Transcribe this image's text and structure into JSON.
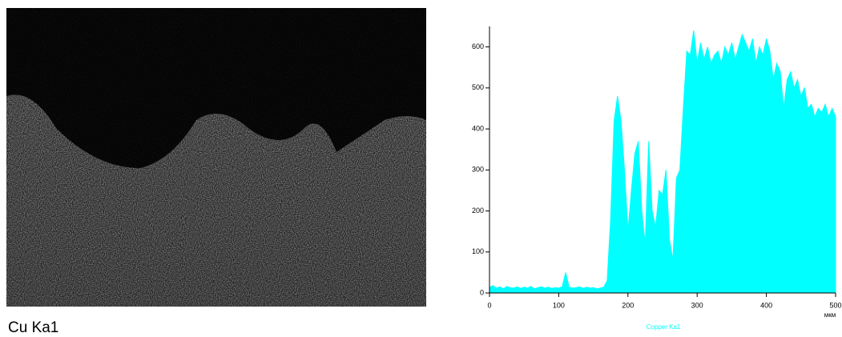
{
  "map": {
    "label": "Cu Ka1"
  },
  "chart_data": {
    "type": "area",
    "title": "Copper Ka1",
    "xlabel": "мкм",
    "color": "#00ffff",
    "x": [
      0,
      5,
      10,
      15,
      20,
      25,
      30,
      35,
      40,
      45,
      50,
      55,
      60,
      65,
      70,
      75,
      80,
      85,
      90,
      95,
      100,
      105,
      110,
      115,
      120,
      125,
      130,
      135,
      140,
      145,
      150,
      155,
      160,
      165,
      170,
      175,
      180,
      185,
      190,
      195,
      200,
      205,
      210,
      215,
      220,
      225,
      230,
      235,
      240,
      245,
      250,
      255,
      260,
      265,
      270,
      275,
      280,
      285,
      290,
      295,
      300,
      305,
      310,
      315,
      320,
      325,
      330,
      335,
      340,
      345,
      350,
      355,
      360,
      365,
      370,
      375,
      380,
      385,
      390,
      395,
      400,
      405,
      410,
      415,
      420,
      425,
      430,
      435,
      440,
      445,
      450,
      455,
      460,
      465,
      470,
      475,
      480,
      485,
      490,
      495,
      500
    ],
    "values": [
      14,
      18,
      12,
      15,
      10,
      16,
      13,
      12,
      15,
      11,
      14,
      12,
      16,
      10,
      13,
      15,
      12,
      14,
      11,
      13,
      12,
      15,
      50,
      14,
      12,
      13,
      15,
      11,
      14,
      12,
      13,
      10,
      12,
      14,
      30,
      180,
      420,
      480,
      420,
      300,
      150,
      250,
      340,
      370,
      200,
      120,
      370,
      200,
      160,
      250,
      240,
      300,
      130,
      80,
      280,
      300,
      450,
      590,
      580,
      640,
      560,
      610,
      570,
      600,
      560,
      580,
      590,
      560,
      600,
      580,
      610,
      570,
      600,
      630,
      610,
      590,
      620,
      560,
      600,
      580,
      620,
      590,
      520,
      560,
      540,
      450,
      520,
      540,
      500,
      520,
      480,
      500,
      450,
      460,
      430,
      450,
      440,
      460,
      430,
      450,
      430
    ],
    "xlim": [
      0,
      500
    ],
    "ylim": [
      0,
      650
    ],
    "xticks": [
      0,
      100,
      200,
      300,
      400,
      500
    ],
    "yticks": [
      0,
      100,
      200,
      300,
      400,
      500,
      600
    ]
  }
}
